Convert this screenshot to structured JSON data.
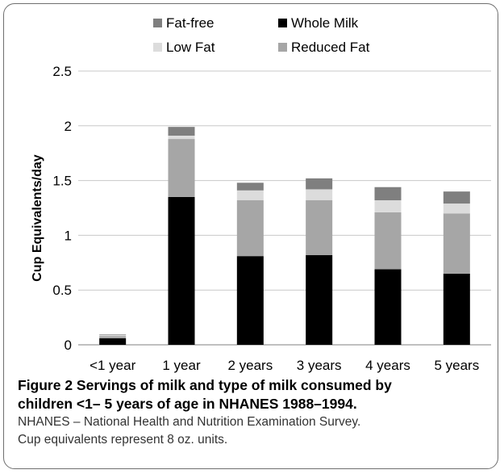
{
  "chart_data": {
    "type": "bar",
    "stacked": true,
    "categories": [
      "<1 year",
      "1 year",
      "2 years",
      "3 years",
      "4 years",
      "5 years"
    ],
    "series": [
      {
        "name": "Whole Milk",
        "color": "#000000",
        "values": [
          0.06,
          1.35,
          0.81,
          0.82,
          0.69,
          0.65
        ]
      },
      {
        "name": "Reduced Fat",
        "color": "#a6a6a6",
        "values": [
          0.02,
          0.53,
          0.51,
          0.5,
          0.52,
          0.55
        ]
      },
      {
        "name": "Low Fat",
        "color": "#dcdcdc",
        "values": [
          0.01,
          0.03,
          0.09,
          0.1,
          0.11,
          0.09
        ]
      },
      {
        "name": "Fat-free",
        "color": "#7f7f7f",
        "values": [
          0.005,
          0.08,
          0.07,
          0.1,
          0.12,
          0.11
        ]
      }
    ],
    "legend": [
      {
        "name": "Fat-free",
        "color": "#7f7f7f"
      },
      {
        "name": "Whole Milk",
        "color": "#000000"
      },
      {
        "name": "Low Fat",
        "color": "#dcdcdc"
      },
      {
        "name": "Reduced Fat",
        "color": "#a6a6a6"
      }
    ],
    "legend_position": "top",
    "ylabel": "Cup Equivalents/day",
    "ylim": [
      0,
      2.5
    ],
    "yticks": [
      "0",
      "0.5",
      "1",
      "1.5",
      "2",
      "2.5"
    ],
    "grid": true
  },
  "caption": {
    "title": "Figure 2 Servings of milk and type of milk consumed by children <1– 5 years of age in NHANES 1988–1994.",
    "title_line1": "Figure 2 Servings of milk and type of milk consumed by",
    "title_line2": "children <1– 5 years of age in NHANES 1988–1994.",
    "note1": "NHANES – National Health and Nutrition Examination Survey.",
    "note2": "Cup equivalents represent 8 oz. units."
  }
}
